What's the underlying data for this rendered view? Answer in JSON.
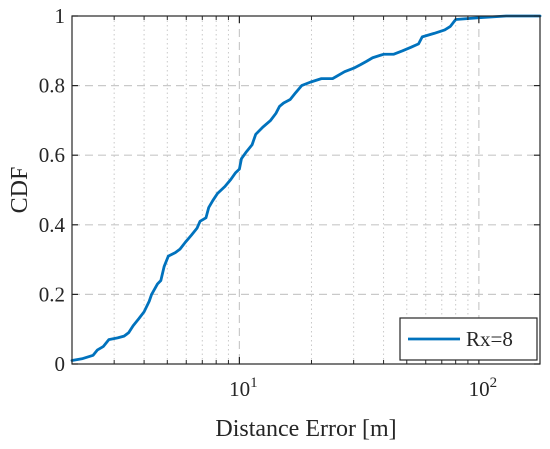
{
  "chart_data": {
    "type": "line",
    "xlabel": "Distance Error [m]",
    "ylabel": "CDF",
    "x_scale": "log",
    "xlim": [
      2,
      180
    ],
    "ylim": [
      0,
      1
    ],
    "x_ticks": [
      {
        "value": 10,
        "base": "10",
        "exp": "1"
      },
      {
        "value": 100,
        "base": "10",
        "exp": "2"
      }
    ],
    "y_ticks": [
      {
        "value": 0,
        "label": "0"
      },
      {
        "value": 0.2,
        "label": "0.2"
      },
      {
        "value": 0.4,
        "label": "0.4"
      },
      {
        "value": 0.6,
        "label": "0.6"
      },
      {
        "value": 0.8,
        "label": "0.8"
      },
      {
        "value": 1,
        "label": "1"
      }
    ],
    "grid": true,
    "legend": {
      "position": "bottom-right"
    },
    "series": [
      {
        "name": "Rx=8",
        "color": "#0072BD",
        "points": [
          [
            2.0,
            0.01
          ],
          [
            2.2,
            0.015
          ],
          [
            2.45,
            0.025
          ],
          [
            2.55,
            0.04
          ],
          [
            2.7,
            0.05
          ],
          [
            2.85,
            0.07
          ],
          [
            3.1,
            0.075
          ],
          [
            3.3,
            0.08
          ],
          [
            3.45,
            0.09
          ],
          [
            3.6,
            0.11
          ],
          [
            3.8,
            0.13
          ],
          [
            4.0,
            0.15
          ],
          [
            4.2,
            0.18
          ],
          [
            4.3,
            0.2
          ],
          [
            4.55,
            0.23
          ],
          [
            4.7,
            0.24
          ],
          [
            4.85,
            0.28
          ],
          [
            5.05,
            0.31
          ],
          [
            5.4,
            0.32
          ],
          [
            5.65,
            0.33
          ],
          [
            5.95,
            0.35
          ],
          [
            6.3,
            0.37
          ],
          [
            6.65,
            0.39
          ],
          [
            6.85,
            0.41
          ],
          [
            7.25,
            0.42
          ],
          [
            7.45,
            0.45
          ],
          [
            7.75,
            0.47
          ],
          [
            8.1,
            0.49
          ],
          [
            8.7,
            0.51
          ],
          [
            9.2,
            0.53
          ],
          [
            9.65,
            0.55
          ],
          [
            10.0,
            0.56
          ],
          [
            10.2,
            0.59
          ],
          [
            10.7,
            0.61
          ],
          [
            11.3,
            0.63
          ],
          [
            11.7,
            0.66
          ],
          [
            12.5,
            0.68
          ],
          [
            13.5,
            0.7
          ],
          [
            14.2,
            0.72
          ],
          [
            14.7,
            0.74
          ],
          [
            15.3,
            0.75
          ],
          [
            16.3,
            0.76
          ],
          [
            17.2,
            0.78
          ],
          [
            18.2,
            0.8
          ],
          [
            19.8,
            0.81
          ],
          [
            22.0,
            0.82
          ],
          [
            24.5,
            0.82
          ],
          [
            27.5,
            0.84
          ],
          [
            30.0,
            0.85
          ],
          [
            32.0,
            0.86
          ],
          [
            34.0,
            0.87
          ],
          [
            36.0,
            0.88
          ],
          [
            40.0,
            0.89
          ],
          [
            44.0,
            0.89
          ],
          [
            48.0,
            0.9
          ],
          [
            52.0,
            0.91
          ],
          [
            56.0,
            0.92
          ],
          [
            58.0,
            0.94
          ],
          [
            65.0,
            0.95
          ],
          [
            72.0,
            0.96
          ],
          [
            76.0,
            0.97
          ],
          [
            80.0,
            0.99
          ],
          [
            100.0,
            0.995
          ],
          [
            130.0,
            1.0
          ],
          [
            180.0,
            1.0
          ]
        ]
      }
    ]
  }
}
